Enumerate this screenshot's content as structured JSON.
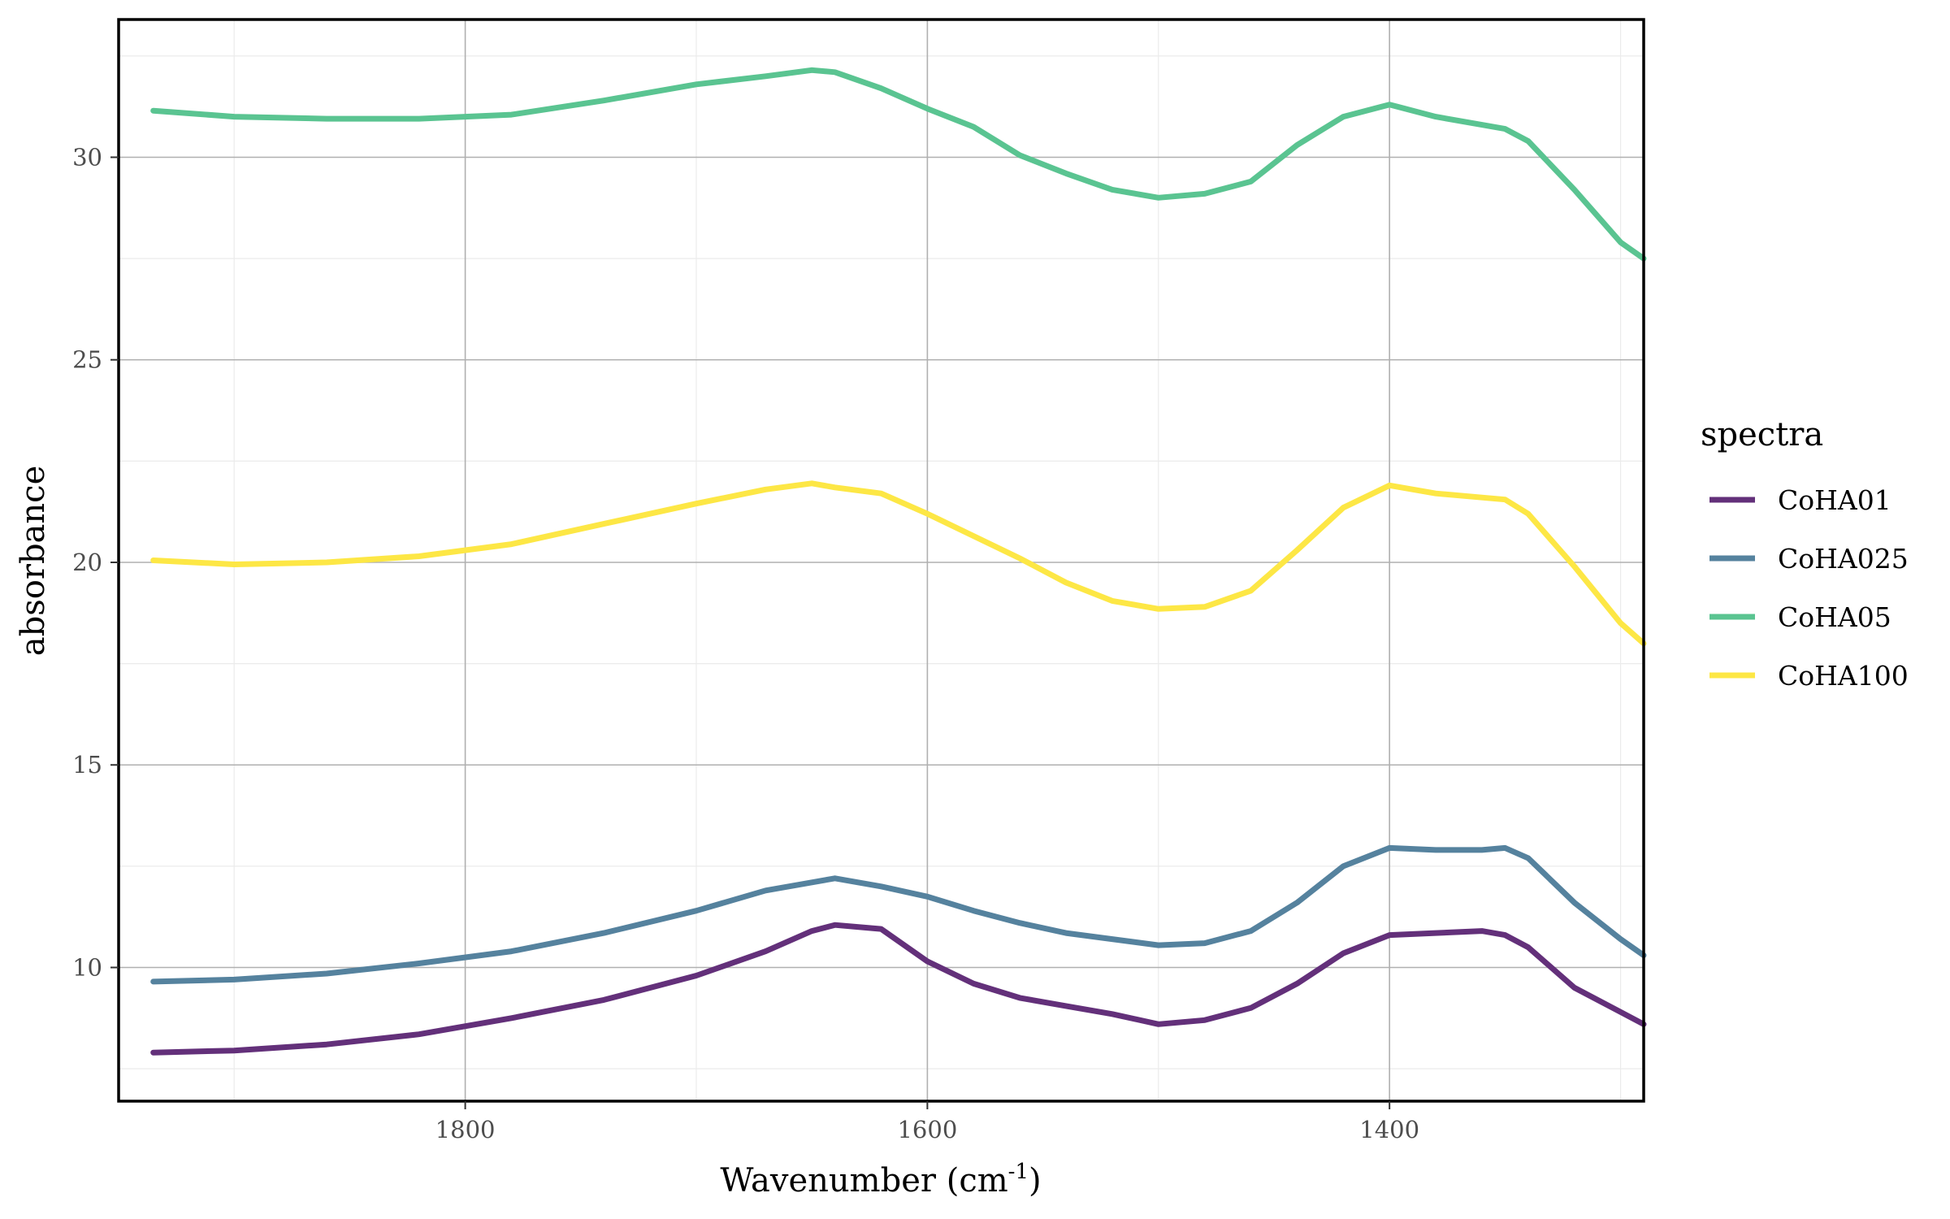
{
  "chart_data": {
    "type": "line",
    "xlabel": "Wavenumber (cm",
    "xlabel_sup": "-1",
    "xlabel_close": ")",
    "ylabel": "absorbance",
    "xlim": [
      1950,
      1290
    ],
    "x_reversed": true,
    "ylim": [
      6.7,
      33.4
    ],
    "x_ticks": [
      1800,
      1600,
      1400
    ],
    "y_ticks": [
      10,
      15,
      20,
      25,
      30
    ],
    "grid": true,
    "legend_title": "spectra",
    "legend_position": "right",
    "series": [
      {
        "name": "CoHA01",
        "color": "#63307a",
        "points": [
          [
            1935,
            7.9
          ],
          [
            1900,
            7.95
          ],
          [
            1860,
            8.1
          ],
          [
            1820,
            8.35
          ],
          [
            1780,
            8.75
          ],
          [
            1740,
            9.2
          ],
          [
            1700,
            9.8
          ],
          [
            1670,
            10.4
          ],
          [
            1650,
            10.9
          ],
          [
            1640,
            11.05
          ],
          [
            1620,
            10.95
          ],
          [
            1600,
            10.15
          ],
          [
            1580,
            9.6
          ],
          [
            1560,
            9.25
          ],
          [
            1540,
            9.05
          ],
          [
            1520,
            8.85
          ],
          [
            1500,
            8.6
          ],
          [
            1480,
            8.7
          ],
          [
            1460,
            9.0
          ],
          [
            1440,
            9.6
          ],
          [
            1420,
            10.35
          ],
          [
            1400,
            10.8
          ],
          [
            1380,
            10.85
          ],
          [
            1360,
            10.9
          ],
          [
            1350,
            10.8
          ],
          [
            1340,
            10.5
          ],
          [
            1320,
            9.5
          ],
          [
            1300,
            8.9
          ],
          [
            1290,
            8.6
          ]
        ]
      },
      {
        "name": "CoHA025",
        "color": "#55829e",
        "points": [
          [
            1935,
            9.65
          ],
          [
            1900,
            9.7
          ],
          [
            1860,
            9.85
          ],
          [
            1820,
            10.1
          ],
          [
            1780,
            10.4
          ],
          [
            1740,
            10.85
          ],
          [
            1700,
            11.4
          ],
          [
            1670,
            11.9
          ],
          [
            1650,
            12.1
          ],
          [
            1640,
            12.2
          ],
          [
            1620,
            12.0
          ],
          [
            1600,
            11.75
          ],
          [
            1580,
            11.4
          ],
          [
            1560,
            11.1
          ],
          [
            1540,
            10.85
          ],
          [
            1520,
            10.7
          ],
          [
            1500,
            10.55
          ],
          [
            1480,
            10.6
          ],
          [
            1460,
            10.9
          ],
          [
            1440,
            11.6
          ],
          [
            1420,
            12.5
          ],
          [
            1400,
            12.95
          ],
          [
            1380,
            12.9
          ],
          [
            1360,
            12.9
          ],
          [
            1350,
            12.95
          ],
          [
            1340,
            12.7
          ],
          [
            1320,
            11.6
          ],
          [
            1300,
            10.7
          ],
          [
            1290,
            10.3
          ]
        ]
      },
      {
        "name": "CoHA05",
        "color": "#5ac491",
        "points": [
          [
            1935,
            31.15
          ],
          [
            1900,
            31.0
          ],
          [
            1860,
            30.95
          ],
          [
            1820,
            30.95
          ],
          [
            1780,
            31.05
          ],
          [
            1740,
            31.4
          ],
          [
            1700,
            31.8
          ],
          [
            1670,
            32.0
          ],
          [
            1650,
            32.15
          ],
          [
            1640,
            32.1
          ],
          [
            1620,
            31.7
          ],
          [
            1600,
            31.2
          ],
          [
            1580,
            30.75
          ],
          [
            1560,
            30.05
          ],
          [
            1540,
            29.6
          ],
          [
            1520,
            29.2
          ],
          [
            1500,
            29.0
          ],
          [
            1480,
            29.1
          ],
          [
            1460,
            29.4
          ],
          [
            1440,
            30.3
          ],
          [
            1420,
            31.0
          ],
          [
            1400,
            31.3
          ],
          [
            1380,
            31.0
          ],
          [
            1360,
            30.8
          ],
          [
            1350,
            30.7
          ],
          [
            1340,
            30.4
          ],
          [
            1320,
            29.2
          ],
          [
            1300,
            27.9
          ],
          [
            1290,
            27.5
          ]
        ]
      },
      {
        "name": "CoHA100",
        "color": "#fde745",
        "points": [
          [
            1935,
            20.05
          ],
          [
            1900,
            19.95
          ],
          [
            1860,
            20.0
          ],
          [
            1820,
            20.15
          ],
          [
            1780,
            20.45
          ],
          [
            1740,
            20.95
          ],
          [
            1700,
            21.45
          ],
          [
            1670,
            21.8
          ],
          [
            1650,
            21.95
          ],
          [
            1640,
            21.85
          ],
          [
            1620,
            21.7
          ],
          [
            1600,
            21.2
          ],
          [
            1580,
            20.65
          ],
          [
            1560,
            20.1
          ],
          [
            1540,
            19.5
          ],
          [
            1520,
            19.05
          ],
          [
            1500,
            18.85
          ],
          [
            1480,
            18.9
          ],
          [
            1460,
            19.3
          ],
          [
            1440,
            20.3
          ],
          [
            1420,
            21.35
          ],
          [
            1400,
            21.9
          ],
          [
            1380,
            21.7
          ],
          [
            1360,
            21.6
          ],
          [
            1350,
            21.55
          ],
          [
            1340,
            21.2
          ],
          [
            1320,
            19.9
          ],
          [
            1300,
            18.5
          ],
          [
            1290,
            18.0
          ]
        ]
      }
    ]
  }
}
